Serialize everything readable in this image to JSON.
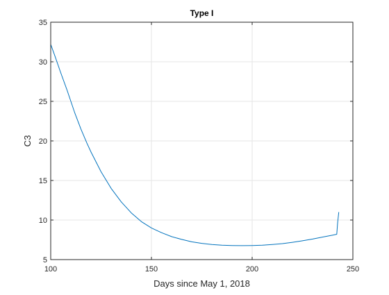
{
  "chart_data": {
    "type": "line",
    "title": "Type I",
    "xlabel": "Days since May 1, 2018",
    "ylabel": "C3",
    "xlim": [
      100,
      250
    ],
    "ylim": [
      5,
      35
    ],
    "xticks": [
      100,
      150,
      200,
      250
    ],
    "yticks": [
      5,
      10,
      15,
      20,
      25,
      30,
      35
    ],
    "grid": true,
    "colors": {
      "line": "#0072BD",
      "grid": "#e6e6e6",
      "axis": "#262626"
    },
    "series": [
      {
        "x": [
          100,
          102,
          105,
          108,
          110,
          112,
          115,
          118,
          120,
          125,
          130,
          135,
          140,
          145,
          150,
          155,
          160,
          165,
          170,
          175,
          180,
          185,
          190,
          195,
          200,
          205,
          210,
          215,
          220,
          225,
          230,
          235,
          240,
          242,
          242.4,
          243
        ],
        "y": [
          32.2,
          30.8,
          28.6,
          26.5,
          25.0,
          23.5,
          21.5,
          19.7,
          18.6,
          16.1,
          14.0,
          12.3,
          10.9,
          9.8,
          9.0,
          8.4,
          7.9,
          7.55,
          7.25,
          7.05,
          6.9,
          6.82,
          6.78,
          6.76,
          6.78,
          6.82,
          6.9,
          7.02,
          7.18,
          7.38,
          7.6,
          7.85,
          8.1,
          8.2,
          9.6,
          11.0
        ]
      }
    ]
  }
}
